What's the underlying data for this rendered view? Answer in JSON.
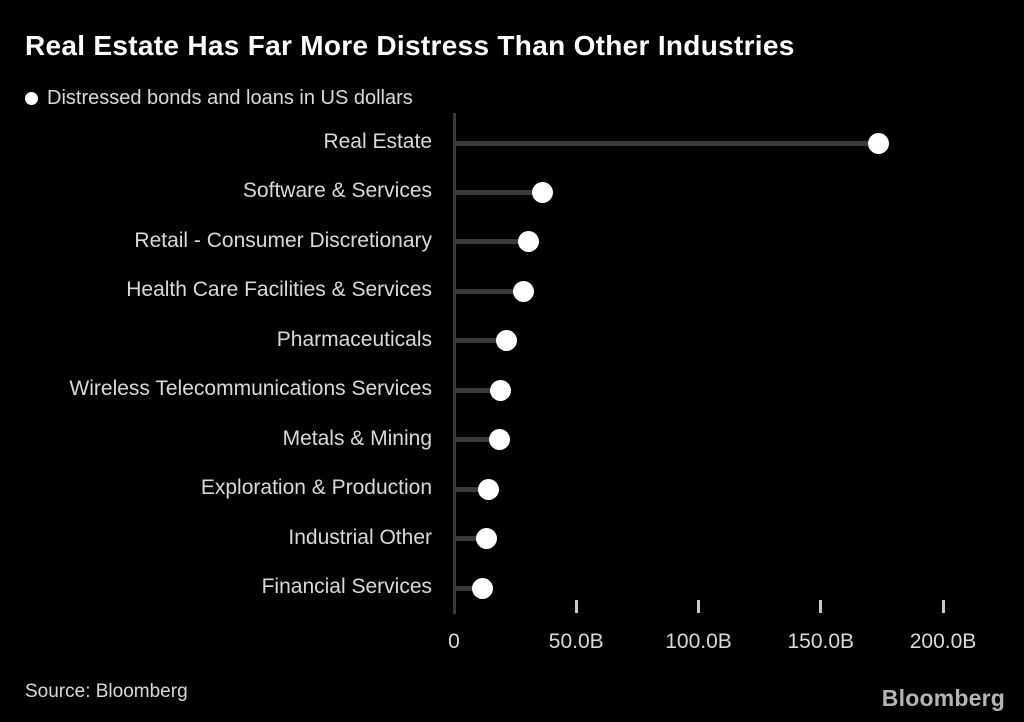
{
  "brand": "Bloomberg",
  "colors": {
    "background": "#000000",
    "title": "#ffffff",
    "text": "#d9d9d9",
    "stem": "#3a3a3a",
    "dot": "#ffffff",
    "tick_mark": "#c9c9c9",
    "brand_logo": "#b5b5b5"
  },
  "chart_data": {
    "type": "bar",
    "variant": "horizontal-lollipop",
    "title": "Real Estate Has Far More Distress Than Other Industries",
    "subtitle": "Distressed bonds and loans in US dollars",
    "legend_marker": "filled-circle",
    "legend_position": "top-left",
    "grid": false,
    "unit": "USD billions",
    "categories": [
      "Real Estate",
      "Software & Services",
      "Retail - Consumer Discretionary",
      "Health Care Facilities & Services",
      "Pharmaceuticals",
      "Wireless Telecommunications Services",
      "Metals & Mining",
      "Exploration & Production",
      "Industrial Other",
      "Financial Services"
    ],
    "values_billions": [
      173.5,
      36.3,
      30.6,
      28.6,
      21.6,
      19.2,
      18.8,
      14.3,
      13.1,
      11.8
    ],
    "xlim_billions": [
      0,
      200
    ],
    "x_tick_values_billions": [
      50,
      100,
      150,
      200
    ],
    "x_tick_labels": [
      "50.0B",
      "100.0B",
      "150.0B",
      "200.0B"
    ],
    "x_zero_label": "0",
    "source": "Source: Bloomberg"
  }
}
